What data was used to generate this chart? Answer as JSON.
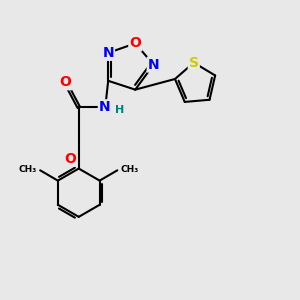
{
  "bg_color": "#e8e8e8",
  "atom_colors": {
    "O": "#ff0000",
    "N": "#0000ff",
    "S": "#cccc00",
    "C": "#000000",
    "H": "#008080"
  },
  "bond_color": "#000000",
  "bond_width": 1.5,
  "font_size_atom": 10,
  "font_size_small": 8,
  "xlim": [
    0,
    10
  ],
  "ylim": [
    0,
    10
  ]
}
